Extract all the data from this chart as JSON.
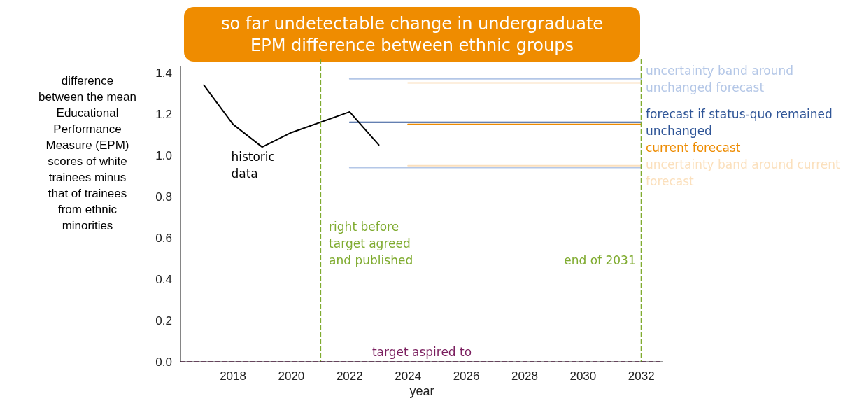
{
  "chart_data": {
    "type": "line",
    "title": "so far undetectable change in undergraduate EPM difference between ethnic groups",
    "xlabel": "year",
    "ylabel": "difference between the mean Educational Performance Measure (EPM) scores of white trainees minus that of trainees from ethnic minorities",
    "xlim": [
      2016.2,
      2032.75
    ],
    "xticks": [
      2018,
      2020,
      2022,
      2024,
      2026,
      2028,
      2030,
      2032
    ],
    "ylim": [
      0,
      1.43
    ],
    "yticks": [
      {
        "value": 0,
        "label": "0.0"
      },
      {
        "value": 0.2,
        "label": "0.2"
      },
      {
        "value": 0.4,
        "label": "0.4"
      },
      {
        "value": 0.6,
        "label": "0.6"
      },
      {
        "value": 0.8,
        "label": "0.8"
      },
      {
        "value": 1,
        "label": "1.0"
      },
      {
        "value": 1.2,
        "label": "1.2"
      },
      {
        "value": 1.4,
        "label": "1.4"
      }
    ],
    "grid": false,
    "marker": "none",
    "line_style": "solid",
    "series": [
      {
        "name": "uncertainty band around unchanged forecast",
        "color": "#b4c7e7",
        "x": [
          2022,
          2032
        ],
        "values": [
          1.37,
          1.37
        ]
      },
      {
        "color": "#b4c7e7",
        "x": [
          2022,
          2032
        ],
        "values": [
          0.94,
          0.94
        ]
      },
      {
        "color": "#fbe0bd",
        "x": [
          2024,
          2032
        ],
        "values": [
          1.35,
          1.35
        ]
      },
      {
        "name": "uncertainty band around current forecast",
        "color": "#fbe0bd",
        "x": [
          2024,
          2032
        ],
        "values": [
          0.95,
          0.95
        ]
      },
      {
        "name": "forecast if status-quo remained unchanged",
        "color": "#2f5597",
        "x": [
          2022,
          2032
        ],
        "values": [
          1.16,
          1.16
        ]
      },
      {
        "name": "current forecast",
        "color": "#ed8b00",
        "x": [
          2024,
          2032
        ],
        "values": [
          1.15,
          1.15
        ]
      },
      {
        "color": "#000000",
        "x": [
          2017,
          2018,
          2019,
          2020,
          2022,
          2023
        ],
        "values": [
          1.34,
          1.15,
          1.04,
          1.11,
          1.21,
          1.05
        ]
      }
    ],
    "ref_lines": [
      {
        "axis": "x",
        "value": 2021,
        "label": "right before target agreed and published",
        "color": "#7fab2f",
        "line_style": "dashed"
      },
      {
        "axis": "x",
        "value": 2032,
        "label": "end of 2031",
        "color": "#7fab2f",
        "line_style": "dashed"
      },
      {
        "axis": "y",
        "value": 0,
        "label": "target aspired to",
        "color": "#7b1f5f",
        "line_style": "dashed"
      }
    ],
    "annotations": [
      "historic data"
    ]
  }
}
